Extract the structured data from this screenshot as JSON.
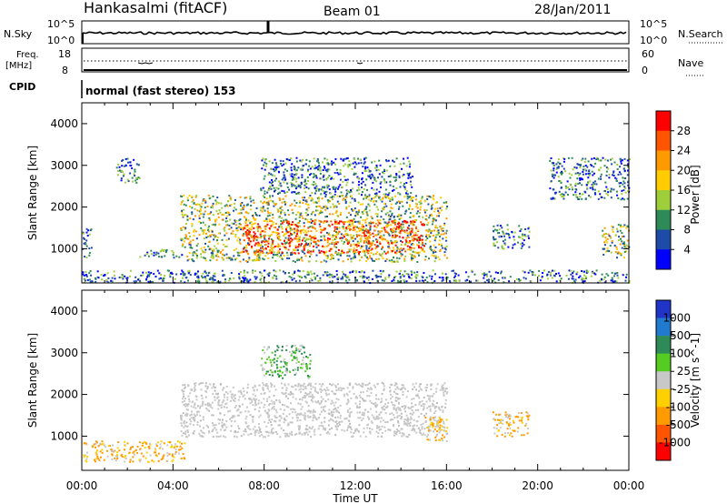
{
  "header": {
    "title": "Hankasalmi (fitACF)",
    "beam": "Beam 01",
    "date": "28/Jan/2011"
  },
  "top_panels": {
    "nsky_label": "N.Sky",
    "nsky_left_ticks": [
      "10^5",
      "10^0"
    ],
    "nsearch_label": "N.Search",
    "nsearch_right_ticks": [
      "10^5",
      "10^0"
    ],
    "freq_label_1": "Freq.",
    "freq_label_2": "[MHz]",
    "freq_ticks": [
      "18",
      "8"
    ],
    "nave_label": "Nave",
    "nave_ticks": [
      "60",
      "0"
    ],
    "cpid_label": "CPID",
    "cpid_text": "normal (fast stereo) 153"
  },
  "chart_data": [
    {
      "type": "heatmap",
      "parameter": "Power",
      "ylabel": "Slant Range [km]",
      "ylim": [
        180,
        4500
      ],
      "y_ticks": [
        1000,
        2000,
        3000,
        4000
      ],
      "colorbar_label": "Power [dB]",
      "colorbar_ticks": [
        "28",
        "24",
        "20",
        "16",
        "12",
        "8",
        "4"
      ],
      "colorbar_colors": [
        "#ff0000",
        "#ff5500",
        "#ff9900",
        "#ffcc00",
        "#9ecf3a",
        "#2e8b57",
        "#1e4aa8",
        "#0000ff"
      ],
      "echo_regions": [
        {
          "x": [
            4.3,
            16.0
          ],
          "y": [
            700,
            2300
          ],
          "level": "moderate"
        },
        {
          "x": [
            7.0,
            15.0
          ],
          "y": [
            900,
            1700
          ],
          "level": "strong"
        },
        {
          "x": [
            7.8,
            14.5
          ],
          "y": [
            2300,
            3200
          ],
          "level": "weak"
        },
        {
          "x": [
            1.5,
            2.5
          ],
          "y": [
            2600,
            3200
          ],
          "level": "weak"
        },
        {
          "x": [
            20.5,
            24.0
          ],
          "y": [
            2200,
            3200
          ],
          "level": "weak"
        },
        {
          "x": [
            18.0,
            19.6
          ],
          "y": [
            1000,
            1600
          ],
          "level": "weak"
        },
        {
          "x": [
            22.8,
            24.0
          ],
          "y": [
            800,
            1600
          ],
          "level": "moderate"
        },
        {
          "x": [
            0.0,
            0.4
          ],
          "y": [
            800,
            1500
          ],
          "level": "weak"
        },
        {
          "x": [
            2.5,
            4.4
          ],
          "y": [
            800,
            1000
          ],
          "level": "weak"
        },
        {
          "x": [
            0.0,
            24.0
          ],
          "y": [
            200,
            500
          ],
          "level": "weak"
        }
      ]
    },
    {
      "type": "heatmap",
      "parameter": "Velocity",
      "ylabel": "Slant Range [km]",
      "xlabel": "Time UT",
      "x_ticks": [
        "00:00",
        "04:00",
        "08:00",
        "12:00",
        "16:00",
        "20:00",
        "00:00"
      ],
      "xlim_hours": [
        0,
        24
      ],
      "ylim": [
        180,
        4500
      ],
      "y_ticks": [
        1000,
        2000,
        3000,
        4000
      ],
      "colorbar_label": "Velocity [m s^-1]",
      "colorbar_ticks": [
        "1000",
        "500",
        "100",
        "25",
        "-25",
        "-100",
        "-500",
        "-1000"
      ],
      "colorbar_colors": [
        "#2035c8",
        "#207ad0",
        "#2e8b57",
        "#55cc22",
        "#c8c8c8",
        "#ffd000",
        "#ff9a00",
        "#ff5500",
        "#ff0000"
      ],
      "echo_regions": [
        {
          "x": [
            4.3,
            16.0
          ],
          "y": [
            1000,
            2300
          ],
          "value": "low"
        },
        {
          "x": [
            7.8,
            10.0
          ],
          "y": [
            2400,
            3200
          ],
          "value": "positive"
        },
        {
          "x": [
            15.0,
            16.0
          ],
          "y": [
            900,
            1500
          ],
          "value": "negative"
        },
        {
          "x": [
            0.0,
            4.5
          ],
          "y": [
            400,
            900
          ],
          "value": "negative"
        },
        {
          "x": [
            18.0,
            19.6
          ],
          "y": [
            1000,
            1600
          ],
          "value": "negative"
        }
      ]
    }
  ]
}
